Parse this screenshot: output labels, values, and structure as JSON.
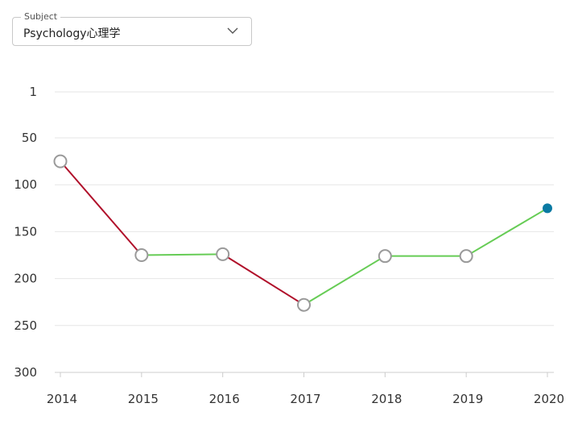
{
  "filter": {
    "label": "Subject",
    "value": "Psychology心理学"
  },
  "chart_data": {
    "type": "line",
    "x": [
      "2014",
      "2015",
      "2016",
      "2017",
      "2018",
      "2019",
      "2020"
    ],
    "values": [
      75,
      175,
      174,
      228,
      176,
      176,
      125
    ],
    "ylim": [
      1,
      300
    ],
    "y_inverted": true,
    "yticks": [
      1,
      50,
      100,
      150,
      200,
      250,
      300
    ],
    "grid": true,
    "colors": {
      "decline": "#b0102a",
      "improve": "#66cc55",
      "point_fill": "#ffffff",
      "point_stroke": "#9a9a9a",
      "latest_point": "#0a7aa3"
    }
  }
}
